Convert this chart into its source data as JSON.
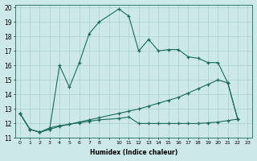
{
  "title": "",
  "xlabel": "Humidex (Indice chaleur)",
  "ylabel": "",
  "xlim": [
    -0.5,
    23.5
  ],
  "ylim": [
    11,
    20.2
  ],
  "yticks": [
    11,
    12,
    13,
    14,
    15,
    16,
    17,
    18,
    19,
    20
  ],
  "xticks": [
    0,
    1,
    2,
    3,
    4,
    5,
    6,
    7,
    8,
    9,
    10,
    11,
    12,
    13,
    14,
    15,
    16,
    17,
    18,
    19,
    20,
    21,
    22,
    23
  ],
  "xticklabels": [
    "0",
    "1",
    "2",
    "3",
    "4",
    "5",
    "6",
    "7",
    "8",
    "",
    "10",
    "11",
    "12",
    "13",
    "14",
    "15",
    "16",
    "17",
    "18",
    "19",
    "20",
    "21",
    "22",
    "23"
  ],
  "bg_color": "#cde8e8",
  "line_color": "#1a6b5a",
  "lines": [
    {
      "x": [
        0,
        1,
        2,
        3,
        4,
        5,
        6,
        7,
        8,
        10,
        11,
        12,
        13,
        14,
        15,
        16,
        17,
        18,
        19,
        20,
        21,
        22
      ],
      "y": [
        12.7,
        11.6,
        11.4,
        11.6,
        16.0,
        14.5,
        16.2,
        18.2,
        19.0,
        19.9,
        19.4,
        17.0,
        17.8,
        17.0,
        17.1,
        17.1,
        16.6,
        16.5,
        16.2,
        16.2,
        14.8,
        12.3
      ]
    },
    {
      "x": [
        0,
        1,
        2,
        3,
        4,
        5,
        6,
        7,
        8,
        10,
        11,
        12,
        13,
        14,
        15,
        16,
        17,
        18,
        19,
        20,
        21,
        22
      ],
      "y": [
        12.7,
        11.6,
        11.4,
        11.6,
        11.8,
        11.95,
        12.1,
        12.25,
        12.4,
        12.7,
        12.85,
        13.0,
        13.2,
        13.4,
        13.6,
        13.8,
        14.1,
        14.4,
        14.7,
        15.0,
        14.8,
        12.3
      ]
    },
    {
      "x": [
        0,
        1,
        2,
        3,
        4,
        5,
        6,
        7,
        8,
        10,
        11,
        12,
        13,
        14,
        15,
        16,
        17,
        18,
        19,
        20,
        21,
        22
      ],
      "y": [
        12.7,
        11.6,
        11.4,
        11.7,
        11.85,
        11.95,
        12.05,
        12.15,
        12.25,
        12.35,
        12.45,
        12.0,
        12.0,
        12.0,
        12.0,
        12.0,
        12.0,
        12.0,
        12.05,
        12.1,
        12.2,
        12.3
      ]
    }
  ]
}
